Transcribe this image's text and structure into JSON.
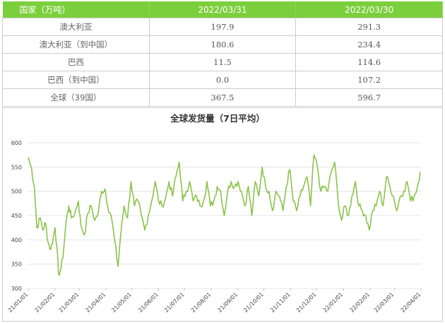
{
  "table": {
    "headers": [
      "国家（万吨）",
      "2022/03/31",
      "2022/03/30"
    ],
    "rows": [
      {
        "name": "澳大利亚",
        "v1": "197.9",
        "v2": "291.3"
      },
      {
        "name": "澳大利亚（到中国）",
        "v1": "180.6",
        "v2": "234.4"
      },
      {
        "name": "巴西",
        "v1": "11.5",
        "v2": "114.6"
      },
      {
        "name": "巴西（到中国）",
        "v1": "0.0",
        "v2": "107.2"
      },
      {
        "name": "全球（39国）",
        "v1": "367.5",
        "v2": "596.7"
      }
    ]
  },
  "chart_data": {
    "type": "line",
    "title": "全球发货量（7日平均）",
    "xlabel": "",
    "ylabel": "",
    "ylim": [
      300,
      600
    ],
    "yticks": [
      300,
      350,
      400,
      450,
      500,
      550,
      600
    ],
    "xlim": [
      "2021-01-01",
      "2022-04-01"
    ],
    "xtick_labels": [
      "21/01/01",
      "21/02/01",
      "21/03/01",
      "21/04/01",
      "21/05/01",
      "21/06/01",
      "21/07/01",
      "21/08/01",
      "21/09/01",
      "21/10/01",
      "21/11/01",
      "21/12/01",
      "22/01/01",
      "22/02/01",
      "22/03/01",
      "22/04/01"
    ],
    "grid": true,
    "line_color": "#8bc34a",
    "series": [
      {
        "x": [
          "2021-01-01",
          "2021-01-05",
          "2021-01-08",
          "2021-01-11",
          "2021-01-15",
          "2021-01-18",
          "2021-01-21",
          "2021-01-24",
          "2021-01-27",
          "2021-01-30",
          "2021-02-01",
          "2021-02-03",
          "2021-02-05",
          "2021-02-08",
          "2021-02-11",
          "2021-02-14",
          "2021-02-17",
          "2021-02-20",
          "2021-02-24",
          "2021-02-28",
          "2021-03-03",
          "2021-03-07",
          "2021-03-11",
          "2021-03-15",
          "2021-03-19",
          "2021-03-23",
          "2021-03-27",
          "2021-03-31",
          "2021-04-03",
          "2021-04-07",
          "2021-04-11",
          "2021-04-15",
          "2021-04-18",
          "2021-04-20",
          "2021-04-22",
          "2021-04-26",
          "2021-04-30",
          "2021-05-04",
          "2021-05-08",
          "2021-05-12",
          "2021-05-16",
          "2021-05-20",
          "2021-05-24",
          "2021-05-28",
          "2021-06-01",
          "2021-06-05",
          "2021-06-09",
          "2021-06-13",
          "2021-06-17",
          "2021-06-21",
          "2021-06-25",
          "2021-06-29",
          "2021-07-03",
          "2021-07-07",
          "2021-07-11",
          "2021-07-15",
          "2021-07-19",
          "2021-07-23",
          "2021-07-27",
          "2021-07-31",
          "2021-08-04",
          "2021-08-08",
          "2021-08-12",
          "2021-08-16",
          "2021-08-20",
          "2021-08-24",
          "2021-08-28",
          "2021-09-01",
          "2021-09-05",
          "2021-09-09",
          "2021-09-13",
          "2021-09-17",
          "2021-09-21",
          "2021-09-25",
          "2021-09-29",
          "2021-10-03",
          "2021-10-07",
          "2021-10-11",
          "2021-10-15",
          "2021-10-19",
          "2021-10-23",
          "2021-10-27",
          "2021-10-31",
          "2021-11-04",
          "2021-11-08",
          "2021-11-12",
          "2021-11-16",
          "2021-11-20",
          "2021-11-24",
          "2021-11-28",
          "2021-12-02",
          "2021-12-06",
          "2021-12-10",
          "2021-12-14",
          "2021-12-18",
          "2021-12-22",
          "2021-12-26",
          "2021-12-30",
          "2022-01-03",
          "2022-01-07",
          "2022-01-11",
          "2022-01-15",
          "2022-01-19",
          "2022-01-23",
          "2022-01-27",
          "2022-01-31",
          "2022-02-04",
          "2022-02-08",
          "2022-02-12",
          "2022-02-16",
          "2022-02-20",
          "2022-02-24",
          "2022-02-28",
          "2022-03-04",
          "2022-03-08",
          "2022-03-12",
          "2022-03-16",
          "2022-03-20",
          "2022-03-24",
          "2022-03-28",
          "2022-03-31"
        ],
        "values": [
          570,
          545,
          510,
          425,
          445,
          420,
          435,
          395,
          380,
          405,
          425,
          390,
          330,
          340,
          380,
          440,
          470,
          445,
          455,
          480,
          430,
          410,
          455,
          470,
          440,
          455,
          500,
          505,
          470,
          450,
          400,
          345,
          410,
          440,
          470,
          445,
          520,
          470,
          480,
          450,
          420,
          450,
          480,
          520,
          480,
          470,
          485,
          520,
          490,
          530,
          560,
          480,
          500,
          520,
          480,
          490,
          470,
          480,
          520,
          470,
          480,
          510,
          500,
          450,
          500,
          520,
          510,
          520,
          500,
          470,
          510,
          450,
          520,
          490,
          550,
          510,
          500,
          460,
          500,
          490,
          460,
          510,
          545,
          480,
          460,
          490,
          510,
          530,
          470,
          575,
          550,
          500,
          510,
          500,
          540,
          560,
          480,
          440,
          470,
          450,
          490,
          520,
          470,
          460,
          450,
          420,
          460,
          470,
          500,
          470,
          530,
          510,
          490,
          460,
          490,
          500,
          520,
          480,
          490,
          510,
          540
        ]
      }
    ]
  }
}
